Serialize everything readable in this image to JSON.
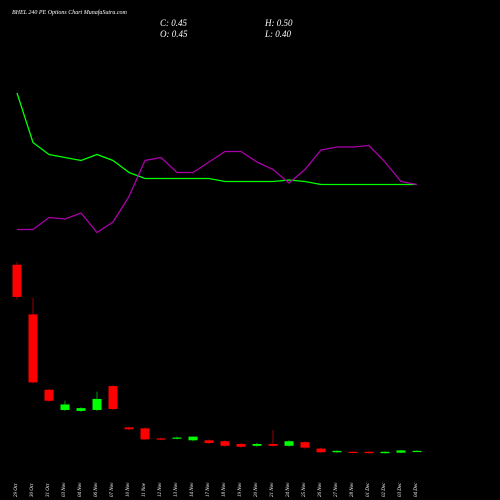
{
  "chart_data": {
    "type": "candlestick",
    "title": "BHEL 240 PE Options Chart MunafaSutra.com",
    "ohlc_labels": [
      "C: 0.45",
      "H: 0.50",
      "O: 0.45",
      "L: 0.40"
    ],
    "categories": [
      "29 Oct",
      "30 Oct",
      "31 Oct",
      "03 Nov",
      "04 Nov",
      "06 Nov",
      "07 Nov",
      "10 Nov",
      "11 Nov",
      "12 Nov",
      "13 Nov",
      "14 Nov",
      "17 Nov",
      "18 Nov",
      "19 Nov",
      "20 Nov",
      "21 Nov",
      "24 Nov",
      "25 Nov",
      "26 Nov",
      "27 Nov",
      "28 Nov",
      "01 Dec",
      "02 Dec",
      "03 Dec",
      "04 Dec"
    ],
    "open": [
      20.7,
      15.3,
      7.1,
      4.9,
      4.8,
      4.9,
      7.5,
      3.0,
      2.9,
      1.8,
      1.8,
      1.6,
      1.6,
      1.5,
      1.2,
      1.0,
      1.2,
      1.0,
      1.4,
      0.7,
      0.3,
      0.35,
      0.35,
      0.2,
      0.25,
      0.45
    ],
    "high": [
      21,
      17.1,
      7.2,
      5.9,
      5.2,
      6.9,
      7.6,
      3.1,
      3.0,
      1.9,
      2.0,
      2.0,
      1.7,
      1.6,
      1.3,
      1.3,
      2.7,
      1.6,
      1.5,
      0.8,
      0.5,
      0.4,
      0.4,
      0.4,
      0.55,
      0.5
    ],
    "low": [
      16.9,
      7.8,
      5.8,
      4.8,
      4.7,
      4.8,
      4.9,
      2.7,
      1.6,
      1.6,
      1.7,
      1.5,
      1.2,
      0.9,
      0.8,
      0.9,
      0.9,
      0.9,
      0.7,
      0.2,
      0.2,
      0.2,
      0.15,
      0.15,
      0.2,
      0.4
    ],
    "close": [
      17.2,
      7.9,
      5.9,
      5.5,
      5.1,
      6.1,
      5.0,
      2.8,
      1.7,
      1.7,
      1.9,
      2.0,
      1.3,
      1.0,
      0.9,
      1.2,
      1.0,
      1.5,
      0.8,
      0.3,
      0.45,
      0.25,
      0.2,
      0.35,
      0.5,
      0.45
    ],
    "ylim": [
      0,
      21
    ],
    "up_color": "#00ff00",
    "down_color": "#ff0000",
    "indicators": {
      "ylim": [
        0,
        100
      ],
      "series": [
        {
          "color": "#00ff00",
          "values": [
            98,
            65,
            57,
            55,
            53,
            57,
            53,
            45,
            41,
            41,
            41,
            41,
            41,
            39,
            39,
            39,
            39,
            40,
            39,
            37,
            37,
            37,
            37,
            37,
            37,
            37
          ]
        },
        {
          "color": "#aa00aa",
          "values": [
            7,
            7,
            15,
            14,
            18,
            5,
            12,
            29,
            53,
            55,
            45,
            45,
            52,
            59,
            59,
            52,
            47,
            38,
            47,
            60,
            62,
            62,
            63,
            52,
            39,
            37
          ]
        }
      ]
    }
  }
}
